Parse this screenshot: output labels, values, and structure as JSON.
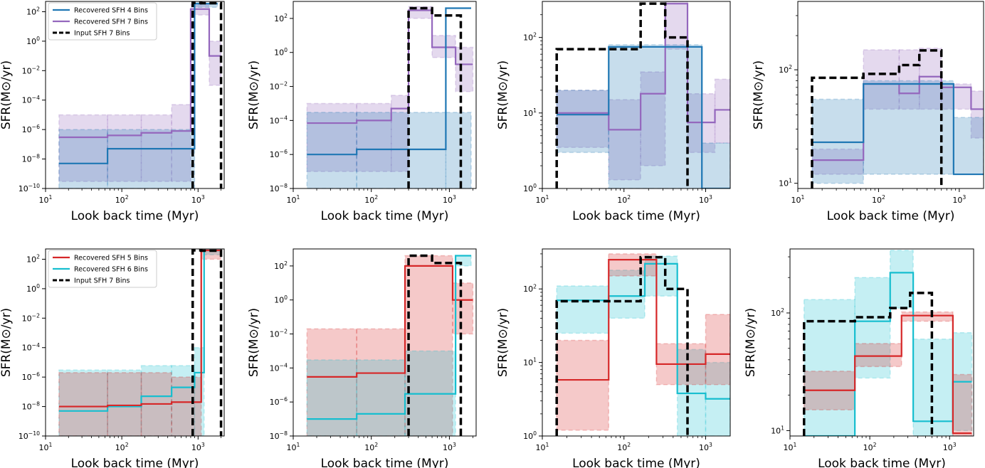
{
  "figure": {
    "xlabel": "Look back time (Myr)",
    "ylabel": "SFR(M⊙/yr)",
    "colors": {
      "blue": "#1f77b4",
      "purple": "#9467bd",
      "red": "#d62728",
      "cyan": "#17becf",
      "black": "#000000"
    },
    "x_ticks": [
      {
        "value": 10,
        "label": "10",
        "exp": "1"
      },
      {
        "value": 100,
        "label": "10",
        "exp": "2"
      },
      {
        "value": 1000,
        "label": "10",
        "exp": "3"
      }
    ]
  },
  "chart_data": [
    {
      "type": "line",
      "xscale": "log",
      "yscale": "log",
      "xlim": [
        10,
        2200
      ],
      "ylim": [
        1e-10,
        500
      ],
      "xlabel": "Look back time (Myr)",
      "ylabel": "SFR(M⊙/yr)",
      "y_ticks": [
        {
          "value": 1e-10,
          "label": "10",
          "exp": "−10"
        },
        {
          "value": 1e-08,
          "label": "10",
          "exp": "−8"
        },
        {
          "value": 1e-06,
          "label": "10",
          "exp": "−6"
        },
        {
          "value": 0.0001,
          "label": "10",
          "exp": "−4"
        },
        {
          "value": 0.01,
          "label": "10",
          "exp": "−2"
        },
        {
          "value": 1,
          "label": "10",
          "exp": "0"
        },
        {
          "value": 100,
          "label": "10",
          "exp": "2"
        }
      ],
      "legend": [
        {
          "label": "Recovered SFH 4 Bins",
          "color": "#1f77b4",
          "dash": false
        },
        {
          "label": "Recovered SFH 7 Bins",
          "color": "#9467bd",
          "dash": false
        },
        {
          "label": "Input SFH 7 Bins",
          "color": "#000000",
          "dash": true
        }
      ],
      "legend_position": "upper-left",
      "series": [
        {
          "name": "Recovered SFH 7 Bins",
          "color": "#9467bd",
          "dash": false,
          "edges": [
            15,
            65,
            180,
            450,
            800,
            1400,
            2000
          ],
          "values": [
            3e-07,
            4e-07,
            6e-07,
            8e-07,
            150,
            0.1
          ],
          "band_low": [
            3e-10,
            3e-10,
            3e-10,
            3e-10,
            60,
            0.001
          ],
          "band_high": [
            1e-05,
            1e-05,
            1e-05,
            5e-05,
            300,
            1
          ]
        },
        {
          "name": "Recovered SFH 4 Bins",
          "color": "#1f77b4",
          "dash": false,
          "edges": [
            15,
            65,
            900,
            1800
          ],
          "values": [
            5e-09,
            5e-08,
            350
          ],
          "band_low": [
            1e-10,
            1e-10,
            200
          ],
          "band_high": [
            1e-06,
            1e-06,
            400
          ]
        },
        {
          "name": "Input SFH 7 Bins",
          "color": "#000000",
          "dash": true,
          "edges": [
            850,
            1100,
            2000
          ],
          "values": [
            400,
            380
          ],
          "drop_to": 1e-10
        }
      ]
    },
    {
      "type": "line",
      "xscale": "log",
      "yscale": "log",
      "xlim": [
        10,
        2200
      ],
      "ylim": [
        1e-08,
        1000
      ],
      "xlabel": "Look back time (Myr)",
      "ylabel": "SFR(M⊙/yr)",
      "y_ticks": [
        {
          "value": 1e-08,
          "label": "10",
          "exp": "−8"
        },
        {
          "value": 1e-06,
          "label": "10",
          "exp": "−6"
        },
        {
          "value": 0.0001,
          "label": "10",
          "exp": "−4"
        },
        {
          "value": 0.01,
          "label": "10",
          "exp": "−2"
        },
        {
          "value": 1,
          "label": "10",
          "exp": "0"
        },
        {
          "value": 100,
          "label": "10",
          "exp": "2"
        }
      ],
      "legend": [],
      "series": [
        {
          "name": "Recovered SFH 7 Bins",
          "color": "#9467bd",
          "dash": false,
          "edges": [
            15,
            65,
            180,
            300,
            600,
            1200,
            2000
          ],
          "values": [
            7e-05,
            0.0001,
            0.0005,
            300,
            2,
            0.2
          ],
          "band_low": [
            1e-07,
            1e-07,
            1e-07,
            100,
            0.5,
            0.005
          ],
          "band_high": [
            0.001,
            0.001,
            0.003,
            500,
            10,
            2
          ]
        },
        {
          "name": "Recovered SFH 4 Bins",
          "color": "#1f77b4",
          "dash": false,
          "edges": [
            15,
            65,
            900,
            1900
          ],
          "values": [
            1e-06,
            2e-06,
            400
          ],
          "band_low": [
            1e-08,
            1e-08,
            1e-08
          ],
          "band_high": [
            0.0003,
            0.0003,
            0.0003
          ]
        },
        {
          "name": "Input SFH 7 Bins",
          "color": "#000000",
          "dash": true,
          "edges": [
            300,
            600,
            1400
          ],
          "values": [
            400,
            150
          ],
          "drop_to": 1e-08
        }
      ]
    },
    {
      "type": "line",
      "xscale": "log",
      "yscale": "log",
      "xlim": [
        10,
        2000
      ],
      "ylim": [
        1,
        300
      ],
      "xlabel": "Look back time (Myr)",
      "ylabel": "SFR(M⊙/yr)",
      "y_ticks": [
        {
          "value": 1,
          "label": "10",
          "exp": "0"
        },
        {
          "value": 10,
          "label": "10",
          "exp": "1"
        },
        {
          "value": 100,
          "label": "10",
          "exp": "2"
        }
      ],
      "legend": [],
      "series": [
        {
          "name": "Recovered SFH 7 Bins",
          "color": "#9467bd",
          "dash": false,
          "edges": [
            15,
            65,
            160,
            320,
            600,
            1300,
            2000
          ],
          "values": [
            10,
            6,
            18,
            280,
            7.5,
            11
          ],
          "band_low": [
            3.5,
            1.3,
            2,
            70,
            3,
            4
          ],
          "band_high": [
            20,
            15,
            35,
            300,
            18,
            28
          ]
        },
        {
          "name": "Recovered SFH 4 Bins",
          "color": "#1f77b4",
          "dash": false,
          "edges": [
            15,
            65,
            900,
            2000
          ],
          "values": [
            9.5,
            75,
            1
          ],
          "band_low": [
            3,
            1,
            1
          ],
          "band_high": [
            20,
            80,
            4
          ]
        },
        {
          "name": "Input SFH 7 Bins",
          "color": "#000000",
          "dash": true,
          "edges": [
            15,
            160,
            320,
            600
          ],
          "values": [
            70,
            280,
            100
          ],
          "drop_to": 1
        }
      ]
    },
    {
      "type": "line",
      "xscale": "log",
      "yscale": "log",
      "xlim": [
        10,
        2000
      ],
      "ylim": [
        9,
        400
      ],
      "xlabel": "Look back time (Myr)",
      "ylabel": "SFR(M⊙/yr)",
      "y_ticks": [
        {
          "value": 10,
          "label": "10",
          "exp": "1"
        },
        {
          "value": 100,
          "label": "10",
          "exp": "2"
        }
      ],
      "legend": [],
      "series": [
        {
          "name": "Recovered SFH 7 Bins",
          "color": "#9467bd",
          "dash": false,
          "edges": [
            15,
            65,
            180,
            320,
            600,
            1400,
            2000
          ],
          "values": [
            16,
            75,
            62,
            87,
            70,
            45
          ],
          "band_low": [
            12,
            45,
            45,
            45,
            45,
            25
          ],
          "band_high": [
            20,
            150,
            150,
            155,
            75,
            65
          ]
        },
        {
          "name": "Recovered SFH 4 Bins",
          "color": "#1f77b4",
          "dash": false,
          "edges": [
            15,
            65,
            850,
            2000
          ],
          "values": [
            23,
            75,
            12
          ],
          "band_low": [
            10,
            12,
            12
          ],
          "band_high": [
            55,
            80,
            38
          ]
        },
        {
          "name": "Input SFH 7 Bins",
          "color": "#000000",
          "dash": true,
          "edges": [
            15,
            65,
            180,
            320,
            600
          ],
          "values": [
            85,
            92,
            110,
            148
          ],
          "drop_to": 9
        }
      ]
    },
    {
      "type": "line",
      "xscale": "log",
      "yscale": "log",
      "xlim": [
        10,
        2200
      ],
      "ylim": [
        1e-10,
        500
      ],
      "xlabel": "Look back time (Myr)",
      "ylabel": "SFR(M⊙/yr)",
      "y_ticks": [
        {
          "value": 1e-10,
          "label": "10",
          "exp": "−10"
        },
        {
          "value": 1e-08,
          "label": "10",
          "exp": "−8"
        },
        {
          "value": 1e-06,
          "label": "10",
          "exp": "−6"
        },
        {
          "value": 0.0001,
          "label": "10",
          "exp": "−4"
        },
        {
          "value": 0.01,
          "label": "10",
          "exp": "−2"
        },
        {
          "value": 1,
          "label": "10",
          "exp": "0"
        },
        {
          "value": 100,
          "label": "10",
          "exp": "2"
        }
      ],
      "legend": [
        {
          "label": "Recovered SFH 5 Bins",
          "color": "#d62728",
          "dash": false
        },
        {
          "label": "Recovered SFH 6 Bins",
          "color": "#17becf",
          "dash": false
        },
        {
          "label": "Input SFH 7 Bins",
          "color": "#000000",
          "dash": true
        }
      ],
      "legend_position": "upper-left",
      "series": [
        {
          "name": "Recovered SFH 6 Bins",
          "color": "#17becf",
          "dash": false,
          "edges": [
            15,
            65,
            180,
            450,
            900,
            1200,
            2000
          ],
          "values": [
            5e-09,
            1e-08,
            5e-08,
            2e-07,
            2e-06,
            400
          ],
          "band_low": [
            1e-10,
            1e-10,
            1e-10,
            1e-10,
            1e-10,
            200
          ],
          "band_high": [
            3e-06,
            3e-06,
            6e-06,
            6e-06,
            0.0001,
            400
          ]
        },
        {
          "name": "Recovered SFH 5 Bins",
          "color": "#d62728",
          "dash": false,
          "edges": [
            15,
            65,
            180,
            450,
            1100,
            2000
          ],
          "values": [
            1e-08,
            1.2e-08,
            1.5e-08,
            2e-08,
            400
          ],
          "band_low": [
            1e-10,
            1e-10,
            1e-10,
            1e-10,
            100
          ],
          "band_high": [
            2e-06,
            2e-06,
            2e-06,
            1e-06,
            400
          ]
        },
        {
          "name": "Input SFH 7 Bins",
          "color": "#000000",
          "dash": true,
          "edges": [
            850,
            1100,
            2000
          ],
          "values": [
            400,
            380
          ],
          "drop_to": 1e-10
        }
      ]
    },
    {
      "type": "line",
      "xscale": "log",
      "yscale": "log",
      "xlim": [
        10,
        2200
      ],
      "ylim": [
        1e-08,
        1000
      ],
      "xlabel": "Look back time (Myr)",
      "ylabel": "SFR(M⊙/yr)",
      "y_ticks": [
        {
          "value": 1e-08,
          "label": "10",
          "exp": "−8"
        },
        {
          "value": 1e-06,
          "label": "10",
          "exp": "−6"
        },
        {
          "value": 0.0001,
          "label": "10",
          "exp": "−4"
        },
        {
          "value": 0.01,
          "label": "10",
          "exp": "−2"
        },
        {
          "value": 1,
          "label": "10",
          "exp": "0"
        },
        {
          "value": 100,
          "label": "10",
          "exp": "2"
        }
      ],
      "legend": [],
      "series": [
        {
          "name": "Recovered SFH 5 Bins",
          "color": "#d62728",
          "dash": false,
          "edges": [
            15,
            65,
            270,
            1100,
            2000
          ],
          "values": [
            3e-05,
            5e-05,
            100,
            1
          ],
          "band_low": [
            1e-08,
            1e-08,
            1e-08,
            0.01
          ],
          "band_high": [
            0.02,
            0.02,
            400,
            10
          ]
        },
        {
          "name": "Recovered SFH 6 Bins",
          "color": "#17becf",
          "dash": false,
          "edges": [
            15,
            65,
            270,
            1200,
            1900
          ],
          "values": [
            1e-07,
            2e-07,
            3e-06,
            400
          ],
          "band_low": [
            1e-08,
            1e-08,
            1e-08,
            100
          ],
          "band_high": [
            0.0003,
            0.0003,
            0.001,
            400
          ]
        },
        {
          "name": "Input SFH 7 Bins",
          "color": "#000000",
          "dash": true,
          "edges": [
            300,
            600,
            1400
          ],
          "values": [
            400,
            150
          ],
          "drop_to": 1e-08
        }
      ]
    },
    {
      "type": "line",
      "xscale": "log",
      "yscale": "log",
      "xlim": [
        10,
        2000
      ],
      "ylim": [
        1,
        350
      ],
      "xlabel": "Look back time (Myr)",
      "ylabel": "SFR(M⊙/yr)",
      "y_ticks": [
        {
          "value": 1,
          "label": "10",
          "exp": "0"
        },
        {
          "value": 10,
          "label": "10",
          "exp": "1"
        },
        {
          "value": 100,
          "label": "10",
          "exp": "2"
        }
      ],
      "legend": [],
      "series": [
        {
          "name": "Recovered SFH 6 Bins",
          "color": "#17becf",
          "dash": false,
          "edges": [
            15,
            65,
            180,
            450,
            1000,
            2000
          ],
          "values": [
            70,
            80,
            220,
            3.8,
            3.2
          ],
          "band_low": [
            25,
            40,
            80,
            1,
            1
          ],
          "band_high": [
            110,
            180,
            280,
            15,
            10
          ]
        },
        {
          "name": "Recovered SFH 5 Bins",
          "color": "#d62728",
          "dash": false,
          "edges": [
            15,
            65,
            250,
            1000,
            2000
          ],
          "values": [
            5.8,
            250,
            9.5,
            13
          ],
          "band_low": [
            1.2,
            150,
            5,
            5
          ],
          "band_high": [
            20,
            300,
            18,
            45
          ]
        },
        {
          "name": "Input SFH 7 Bins",
          "color": "#000000",
          "dash": true,
          "edges": [
            15,
            160,
            320,
            600
          ],
          "values": [
            68,
            270,
            100
          ],
          "drop_to": 1
        }
      ]
    },
    {
      "type": "line",
      "xscale": "log",
      "yscale": "log",
      "xlim": [
        10,
        2000
      ],
      "ylim": [
        9,
        350
      ],
      "xlabel": "Look back time (Myr)",
      "ylabel": "SFR(M⊙/yr)",
      "y_ticks": [
        {
          "value": 10,
          "label": "10",
          "exp": "1"
        },
        {
          "value": 100,
          "label": "10",
          "exp": "2"
        }
      ],
      "legend": [],
      "series": [
        {
          "name": "Recovered SFH 6 Bins",
          "color": "#17becf",
          "dash": false,
          "edges": [
            15,
            65,
            180,
            350,
            1100,
            1900
          ],
          "values": [
            9,
            85,
            220,
            12,
            26
          ],
          "band_low": [
            9,
            28,
            110,
            9,
            10
          ],
          "band_high": [
            130,
            200,
            340,
            60,
            68
          ]
        },
        {
          "name": "Recovered SFH 5 Bins",
          "color": "#d62728",
          "dash": false,
          "edges": [
            15,
            65,
            250,
            1100,
            1900
          ],
          "values": [
            22,
            43,
            95,
            9.5
          ],
          "band_low": [
            15,
            35,
            85,
            9
          ],
          "band_high": [
            32,
            55,
            102,
            30
          ]
        },
        {
          "name": "Input SFH 7 Bins",
          "color": "#000000",
          "dash": true,
          "edges": [
            15,
            65,
            180,
            320,
            600
          ],
          "values": [
            85,
            92,
            110,
            148
          ],
          "drop_to": 9
        }
      ]
    }
  ]
}
